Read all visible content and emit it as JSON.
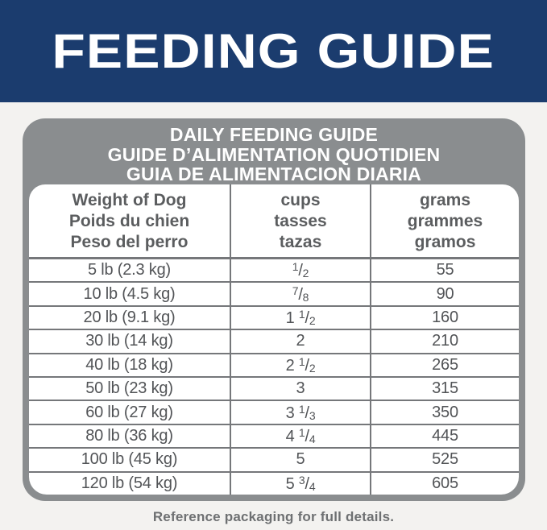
{
  "colors": {
    "page_bg": "#f3f2f0",
    "navy": "#1b3c6e",
    "frame_gray": "#8a8d8f",
    "line_gray": "#75777a",
    "header_text": "#5b5d5f",
    "cell_text": "#525457",
    "note_text": "#6e7072"
  },
  "banner": {
    "title": "FEEDING GUIDE"
  },
  "guide": {
    "title_lines": [
      "DAILY FEEDING GUIDE",
      "GUIDE D’ALIMENTATION QUOTIDIEN",
      "GUIA DE ALIMENTACION DIARIA"
    ],
    "columns": [
      {
        "id": "weight",
        "lines": [
          "Weight of Dog",
          "Poids du chien",
          "Peso del perro"
        ]
      },
      {
        "id": "cups",
        "lines": [
          "cups",
          "tasses",
          "tazas"
        ]
      },
      {
        "id": "grams",
        "lines": [
          "grams",
          "grammes",
          "gramos"
        ]
      }
    ],
    "rows": [
      {
        "weight": "5 lb (2.3 kg)",
        "cups": {
          "whole": "",
          "num": "1",
          "den": "2"
        },
        "grams": "55"
      },
      {
        "weight": "10 lb (4.5 kg)",
        "cups": {
          "whole": "",
          "num": "7",
          "den": "8"
        },
        "grams": "90"
      },
      {
        "weight": "20 lb (9.1 kg)",
        "cups": {
          "whole": "1",
          "num": "1",
          "den": "2"
        },
        "grams": "160"
      },
      {
        "weight": "30 lb (14 kg)",
        "cups": {
          "whole": "2"
        },
        "grams": "210"
      },
      {
        "weight": "40 lb (18 kg)",
        "cups": {
          "whole": "2",
          "num": "1",
          "den": "2"
        },
        "grams": "265"
      },
      {
        "weight": "50 lb (23 kg)",
        "cups": {
          "whole": "3"
        },
        "grams": "315"
      },
      {
        "weight": "60 lb (27 kg)",
        "cups": {
          "whole": "3",
          "num": "1",
          "den": "3"
        },
        "grams": "350"
      },
      {
        "weight": "80 lb (36 kg)",
        "cups": {
          "whole": "4",
          "num": "1",
          "den": "4"
        },
        "grams": "445"
      },
      {
        "weight": "100 lb (45 kg)",
        "cups": {
          "whole": "5"
        },
        "grams": "525"
      },
      {
        "weight": "120 lb (54 kg)",
        "cups": {
          "whole": "5",
          "num": "3",
          "den": "4"
        },
        "grams": "605"
      }
    ]
  },
  "footer": {
    "note": "Reference packaging for full details."
  }
}
